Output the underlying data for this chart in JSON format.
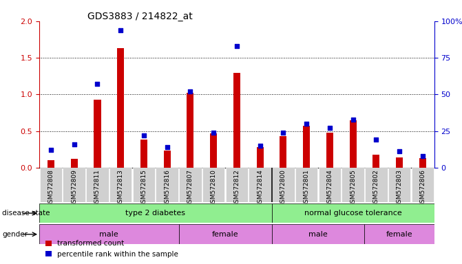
{
  "title": "GDS3883 / 214822_at",
  "samples": [
    "GSM572808",
    "GSM572809",
    "GSM572811",
    "GSM572813",
    "GSM572815",
    "GSM572816",
    "GSM572807",
    "GSM572810",
    "GSM572812",
    "GSM572814",
    "GSM572800",
    "GSM572801",
    "GSM572804",
    "GSM572805",
    "GSM572802",
    "GSM572803",
    "GSM572806"
  ],
  "red_values": [
    0.1,
    0.12,
    0.93,
    1.63,
    0.38,
    0.23,
    1.02,
    0.47,
    1.29,
    0.28,
    0.43,
    0.57,
    0.48,
    0.65,
    0.18,
    0.14,
    0.13
  ],
  "blue_percentiles": [
    12,
    16,
    57,
    94,
    22,
    14,
    52,
    24,
    83,
    15,
    24,
    30,
    27,
    33,
    19,
    11,
    8
  ],
  "ylim_left": [
    0,
    2
  ],
  "ylim_right": [
    0,
    100
  ],
  "yticks_left": [
    0,
    0.5,
    1.0,
    1.5,
    2.0
  ],
  "yticks_right": [
    0,
    25,
    50,
    75,
    100
  ],
  "bar_color": "#cc0000",
  "dot_color": "#0000cc",
  "left_axis_color": "#cc0000",
  "right_axis_color": "#0000cc",
  "disease_divider_col": 10,
  "gender_dividers_col": [
    6,
    10,
    14
  ],
  "t2d_count": 10,
  "ngt_count": 7,
  "male_t2d_count": 6,
  "female_t2d_count": 4,
  "male_ngt_count": 4,
  "female_ngt_count": 3
}
